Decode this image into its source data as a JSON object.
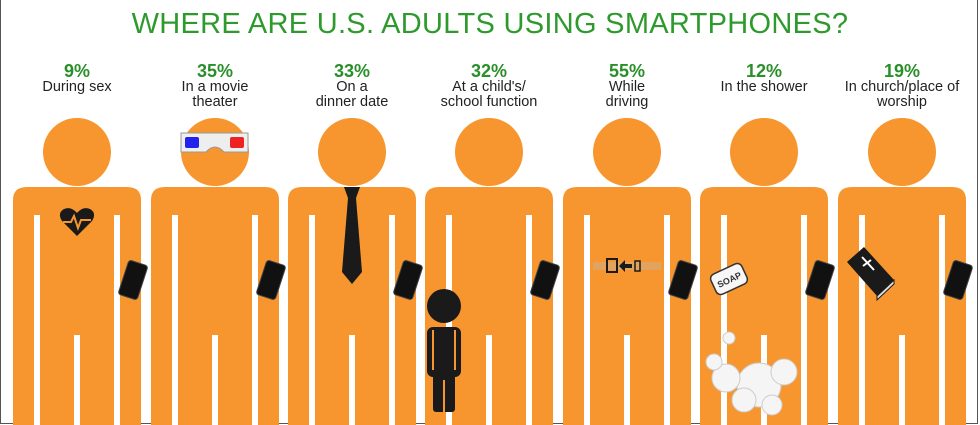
{
  "title": "WHERE ARE U.S. ADULTS USING SMARTPHONES?",
  "colors": {
    "title": "#2e9a2e",
    "percent": "#2a8f2a",
    "figure": "#f7962e",
    "accessory": "#1a1a1a"
  },
  "items": [
    {
      "percent": "9%",
      "label_lines": [
        "During sex"
      ],
      "accessory": "heart-rate-icon"
    },
    {
      "percent": "35%",
      "label_lines": [
        "In a movie",
        "theater"
      ],
      "accessory": "3d-glasses-icon"
    },
    {
      "percent": "33%",
      "label_lines": [
        "On a",
        "dinner date"
      ],
      "accessory": "necktie-icon"
    },
    {
      "percent": "32%",
      "label_lines": [
        "At a child's/",
        "school function"
      ],
      "accessory": "child-icon"
    },
    {
      "percent": "55%",
      "label_lines": [
        "While",
        "driving"
      ],
      "accessory": "seatbelt-icon"
    },
    {
      "percent": "12%",
      "label_lines": [
        "In the shower"
      ],
      "accessory": "soap-icon"
    },
    {
      "percent": "19%",
      "label_lines": [
        "In church/place of",
        "worship"
      ],
      "accessory": "bible-icon"
    }
  ],
  "soap_text": "SOAP",
  "chart_data": {
    "type": "bar",
    "title": "WHERE ARE U.S. ADULTS USING SMARTPHONES?",
    "categories": [
      "During sex",
      "In a movie theater",
      "On a dinner date",
      "At a child's/school function",
      "While driving",
      "In the shower",
      "In church/place of worship"
    ],
    "values": [
      9,
      35,
      33,
      32,
      55,
      12,
      19
    ],
    "unit": "%"
  }
}
